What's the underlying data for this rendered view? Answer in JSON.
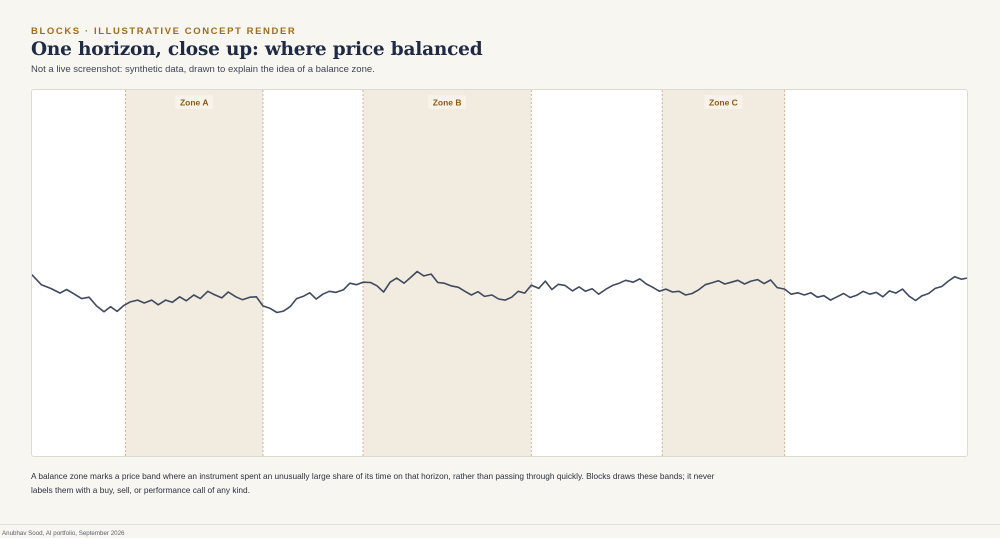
{
  "header": {
    "eyebrow": "BLOCKS · ILLUSTRATIVE CONCEPT RENDER",
    "title": "One horizon, close up: where price balanced",
    "subtitle": "Not a live screenshot: synthetic data, drawn to explain the idea of a balance zone."
  },
  "caption": "A balance zone marks a price band where an instrument spent an unusually large share of its time on that horizon, rather than passing through quickly. Blocks draws these bands; it never labels them with a buy, sell, or performance call of any kind.",
  "footer": "Anubhav Sood, AI portfolio, September 2026",
  "colors": {
    "line": "#3f4a5e",
    "zone_fill": "#f1ebe0",
    "zone_border": "#c9a77a",
    "zone_label": "#8a5a14",
    "accent": "#a06c1c"
  },
  "chart_data": {
    "type": "line",
    "title": "One horizon, close up: where price balanced",
    "xlabel": "",
    "ylabel": "",
    "grid": false,
    "legend": "none",
    "x_range": [
      0,
      100
    ],
    "y_range": [
      0,
      100
    ],
    "zones": [
      {
        "label": "Zone A",
        "start": 10,
        "end": 24.7
      },
      {
        "label": "Zone B",
        "start": 35.4,
        "end": 53.4
      },
      {
        "label": "Zone C",
        "start": 67.4,
        "end": 80.5
      }
    ],
    "series": [
      {
        "values": [
          [
            0,
            49.5
          ],
          [
            1,
            46.8
          ],
          [
            2,
            45.8
          ],
          [
            3,
            44.5
          ],
          [
            3.7,
            45.5
          ],
          [
            4.5,
            44.3
          ],
          [
            5.3,
            43.0
          ],
          [
            6.1,
            43.4
          ],
          [
            6.9,
            41.0
          ],
          [
            7.7,
            39.4
          ],
          [
            8.4,
            40.8
          ],
          [
            9.1,
            39.5
          ],
          [
            9.8,
            41.1
          ],
          [
            10.5,
            42.1
          ],
          [
            11.3,
            42.6
          ],
          [
            12.0,
            41.8
          ],
          [
            12.8,
            42.6
          ],
          [
            13.5,
            41.3
          ],
          [
            14.3,
            42.6
          ],
          [
            15.0,
            42.0
          ],
          [
            15.8,
            43.5
          ],
          [
            16.5,
            42.4
          ],
          [
            17.3,
            44.0
          ],
          [
            18.0,
            43.0
          ],
          [
            18.8,
            45.0
          ],
          [
            19.5,
            44.1
          ],
          [
            20.3,
            43.2
          ],
          [
            21.0,
            44.8
          ],
          [
            21.8,
            43.5
          ],
          [
            22.5,
            42.7
          ],
          [
            23.3,
            43.4
          ],
          [
            24.0,
            43.5
          ],
          [
            24.7,
            41.0
          ],
          [
            25.4,
            40.4
          ],
          [
            26.2,
            39.2
          ],
          [
            26.9,
            39.6
          ],
          [
            27.6,
            40.8
          ],
          [
            28.3,
            43.0
          ],
          [
            29.0,
            43.6
          ],
          [
            29.7,
            44.6
          ],
          [
            30.4,
            42.9
          ],
          [
            31.1,
            44.2
          ],
          [
            31.8,
            45.0
          ],
          [
            32.5,
            44.7
          ],
          [
            33.3,
            45.4
          ],
          [
            34.0,
            47.2
          ],
          [
            34.7,
            46.8
          ],
          [
            35.4,
            47.5
          ],
          [
            36.2,
            47.4
          ],
          [
            36.9,
            46.5
          ],
          [
            37.6,
            44.8
          ],
          [
            38.3,
            47.5
          ],
          [
            39.0,
            48.6
          ],
          [
            39.8,
            47.2
          ],
          [
            40.5,
            48.8
          ],
          [
            41.2,
            50.4
          ],
          [
            41.9,
            49.2
          ],
          [
            42.7,
            49.7
          ],
          [
            43.4,
            47.4
          ],
          [
            44.1,
            47.2
          ],
          [
            44.8,
            46.5
          ],
          [
            45.6,
            46.1
          ],
          [
            46.3,
            45.0
          ],
          [
            47.0,
            44.0
          ],
          [
            47.7,
            44.9
          ],
          [
            48.4,
            43.6
          ],
          [
            49.2,
            44.0
          ],
          [
            49.9,
            42.9
          ],
          [
            50.6,
            42.6
          ],
          [
            51.3,
            43.4
          ],
          [
            52.0,
            45.0
          ],
          [
            52.7,
            44.5
          ],
          [
            53.4,
            46.7
          ],
          [
            54.2,
            45.8
          ],
          [
            54.9,
            47.8
          ],
          [
            55.6,
            45.5
          ],
          [
            56.3,
            46.9
          ],
          [
            57.0,
            46.6
          ],
          [
            57.8,
            45.1
          ],
          [
            58.5,
            46.2
          ],
          [
            59.2,
            45.0
          ],
          [
            59.9,
            45.7
          ],
          [
            60.6,
            44.2
          ],
          [
            61.4,
            45.6
          ],
          [
            62.1,
            46.6
          ],
          [
            62.8,
            47.2
          ],
          [
            63.5,
            48.0
          ],
          [
            64.3,
            47.5
          ],
          [
            65.0,
            48.4
          ],
          [
            65.7,
            47.0
          ],
          [
            66.4,
            46.1
          ],
          [
            67.1,
            45.0
          ],
          [
            67.8,
            45.6
          ],
          [
            68.5,
            44.8
          ],
          [
            69.2,
            45.0
          ],
          [
            69.9,
            44.0
          ],
          [
            70.6,
            44.4
          ],
          [
            71.3,
            45.4
          ],
          [
            72.0,
            46.8
          ],
          [
            72.7,
            47.3
          ],
          [
            73.4,
            47.9
          ],
          [
            74.1,
            47.0
          ],
          [
            74.8,
            47.5
          ],
          [
            75.5,
            48.0
          ],
          [
            76.2,
            47.0
          ],
          [
            76.9,
            47.8
          ],
          [
            77.6,
            48.2
          ],
          [
            78.3,
            47.1
          ],
          [
            79.0,
            48.1
          ],
          [
            79.7,
            46.0
          ],
          [
            80.5,
            45.6
          ],
          [
            81.2,
            44.2
          ],
          [
            81.9,
            44.6
          ],
          [
            82.6,
            44.0
          ],
          [
            83.3,
            44.6
          ],
          [
            84.0,
            43.4
          ],
          [
            84.7,
            43.8
          ],
          [
            85.4,
            42.6
          ],
          [
            86.1,
            43.5
          ],
          [
            86.8,
            44.4
          ],
          [
            87.5,
            43.3
          ],
          [
            88.2,
            43.9
          ],
          [
            88.9,
            45.0
          ],
          [
            89.6,
            44.2
          ],
          [
            90.3,
            44.7
          ],
          [
            91.0,
            43.5
          ],
          [
            91.7,
            45.1
          ],
          [
            92.4,
            44.5
          ],
          [
            93.1,
            45.6
          ],
          [
            93.8,
            43.7
          ],
          [
            94.5,
            42.5
          ],
          [
            95.2,
            43.8
          ],
          [
            95.9,
            44.4
          ],
          [
            96.6,
            45.8
          ],
          [
            97.3,
            46.3
          ],
          [
            98.0,
            47.8
          ],
          [
            98.7,
            49.0
          ],
          [
            99.4,
            48.3
          ],
          [
            100,
            48.6
          ]
        ]
      }
    ]
  }
}
